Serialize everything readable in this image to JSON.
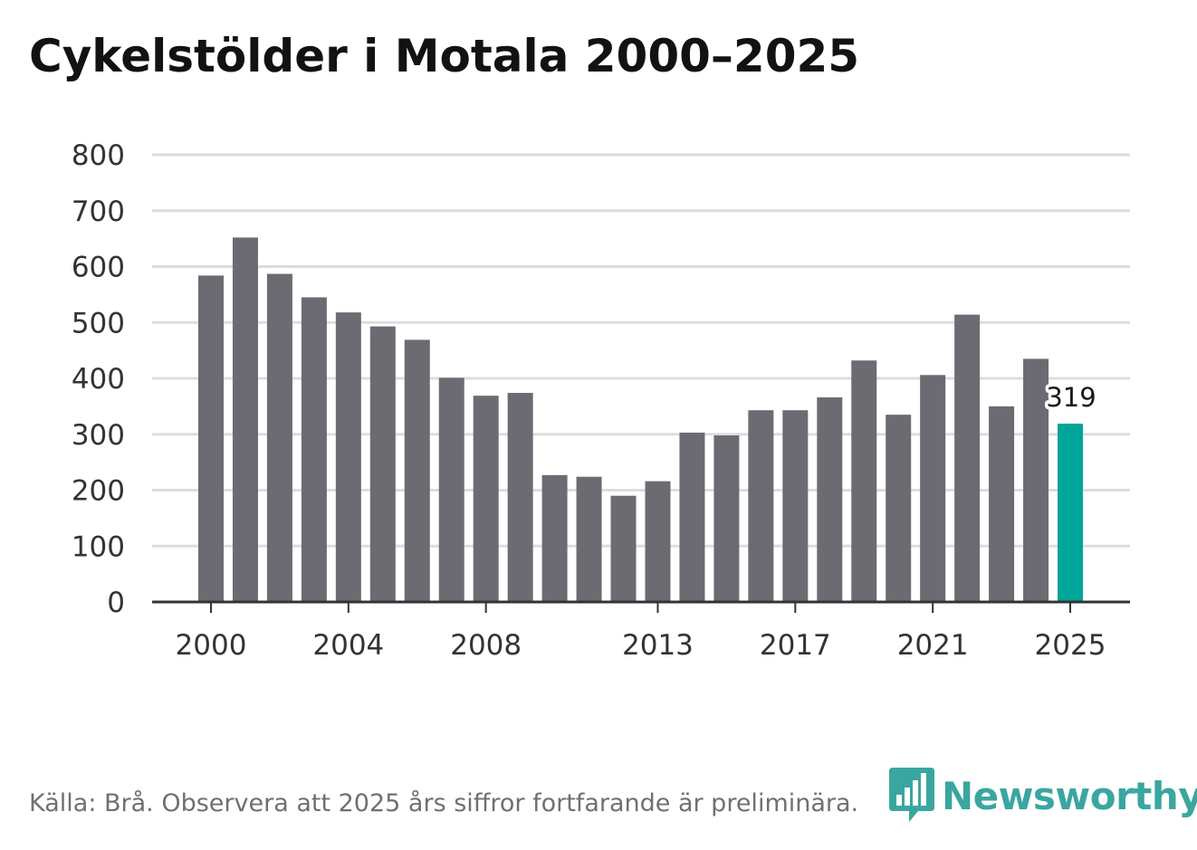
{
  "title": "Cykelstölder i Motala 2000–2025",
  "source": "Källa: Brå. Observera att 2025 års siffror fortfarande är preliminära.",
  "brand": "Newsworthy",
  "colors": {
    "bar": "#6c6b72",
    "highlight": "#00a59a",
    "grid": "#dddddd",
    "axis": "#333333",
    "brand": "#3aa6a0"
  },
  "chart_data": {
    "type": "bar",
    "title": "Cykelstölder i Motala 2000–2025",
    "xlabel": "",
    "ylabel": "",
    "ylim": [
      0,
      800
    ],
    "yticks": [
      0,
      100,
      200,
      300,
      400,
      500,
      600,
      700,
      800
    ],
    "xtick_labels": [
      "2000",
      "2004",
      "2008",
      "2013",
      "2017",
      "2021",
      "2025"
    ],
    "grid": true,
    "categories": [
      "2000",
      "2001",
      "2002",
      "2003",
      "2004",
      "2005",
      "2006",
      "2007",
      "2008",
      "2009",
      "2010",
      "2011",
      "2012",
      "2013",
      "2014",
      "2015",
      "2016",
      "2017",
      "2018",
      "2019",
      "2020",
      "2021",
      "2022",
      "2023",
      "2024",
      "2025"
    ],
    "values": [
      584,
      652,
      587,
      545,
      518,
      493,
      469,
      401,
      369,
      374,
      227,
      224,
      190,
      216,
      303,
      298,
      343,
      343,
      366,
      432,
      335,
      406,
      514,
      350,
      435,
      319
    ],
    "highlight": {
      "category": "2025",
      "value": 319,
      "label": "319"
    }
  }
}
